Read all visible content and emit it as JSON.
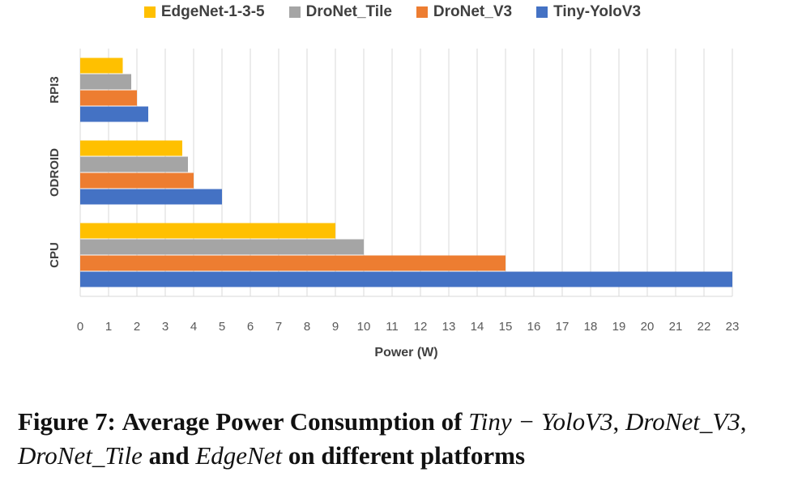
{
  "chart_data": {
    "type": "bar",
    "orientation": "horizontal",
    "title": "",
    "xlabel": "Power (W)",
    "ylabel": "",
    "xlim": [
      0,
      23
    ],
    "x_ticks": [
      "0",
      "1",
      "2",
      "3",
      "4",
      "5",
      "6",
      "7",
      "8",
      "9",
      "10",
      "11",
      "12",
      "13",
      "14",
      "15",
      "16",
      "17",
      "18",
      "19",
      "20",
      "21",
      "22",
      "23"
    ],
    "categories": [
      "RPI3",
      "ODROID",
      "CPU"
    ],
    "series": [
      {
        "name": "EdgeNet-1-3-5",
        "color": "#FFC000",
        "values": [
          1.5,
          3.6,
          9
        ]
      },
      {
        "name": "DroNet_Tile",
        "color": "#A5A5A5",
        "values": [
          1.8,
          3.8,
          10
        ]
      },
      {
        "name": "DroNet_V3",
        "color": "#ED7D31",
        "values": [
          2.0,
          4.0,
          15
        ]
      },
      {
        "name": "Tiny-YoloV3",
        "color": "#4472C4",
        "values": [
          2.4,
          5.0,
          23
        ]
      }
    ],
    "grid": true,
    "legend_position": "top"
  },
  "caption": {
    "label": "Figure 7:",
    "text_1": "Average Power Consumption of",
    "model_1": "Tiny − YoloV3",
    "model_2": "DroNet_V3",
    "model_3": "DroNet_Tile",
    "and_word": "and",
    "model_4": "EdgeNet",
    "text_2": "on different platforms"
  }
}
